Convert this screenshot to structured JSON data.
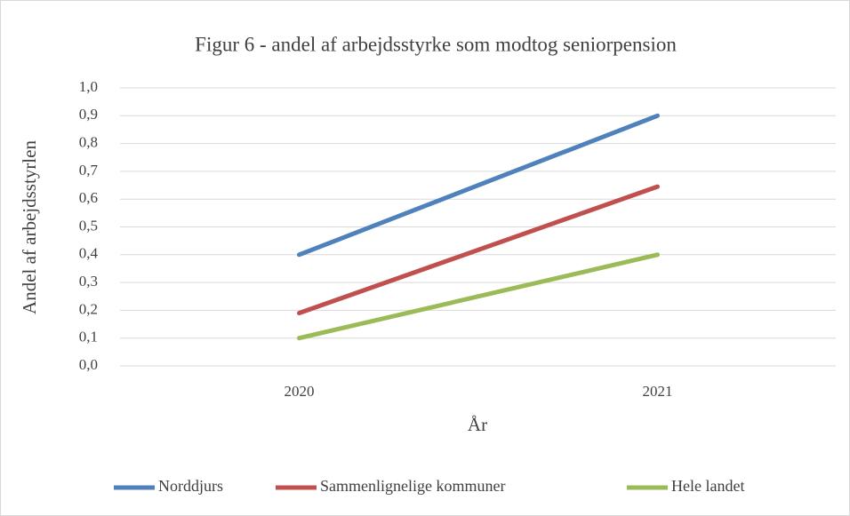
{
  "chart_data": {
    "type": "line",
    "title": "Figur 6 - andel af arbejdsstyrke som modtog seniorpension",
    "x_label": "År",
    "y_label": "Andel af arbejdsstyrlen",
    "categories": [
      "2020",
      "2021"
    ],
    "series": [
      {
        "name": "Norddjurs",
        "color": "#4f81bd",
        "values": [
          0.4,
          0.9
        ]
      },
      {
        "name": "Sammenlignelige kommuner",
        "color": "#c0504d",
        "values": [
          0.19,
          0.645
        ]
      },
      {
        "name": "Hele landet",
        "color": "#9bbb59",
        "values": [
          0.1,
          0.4
        ]
      }
    ],
    "ylim": [
      0,
      1
    ],
    "yticks": [
      {
        "value": 0,
        "label": "0,0"
      },
      {
        "value": 0.1,
        "label": "0,1"
      },
      {
        "value": 0.2,
        "label": "0,2"
      },
      {
        "value": 0.3,
        "label": "0,3"
      },
      {
        "value": 0.4,
        "label": "0,4"
      },
      {
        "value": 0.5,
        "label": "0,5"
      },
      {
        "value": 0.6,
        "label": "0,6"
      },
      {
        "value": 0.7,
        "label": "0,7"
      },
      {
        "value": 0.8,
        "label": "0,8"
      },
      {
        "value": 0.9,
        "label": "0,9"
      },
      {
        "value": 1,
        "label": "1,0"
      }
    ],
    "grid": true,
    "legend": "bottom"
  }
}
